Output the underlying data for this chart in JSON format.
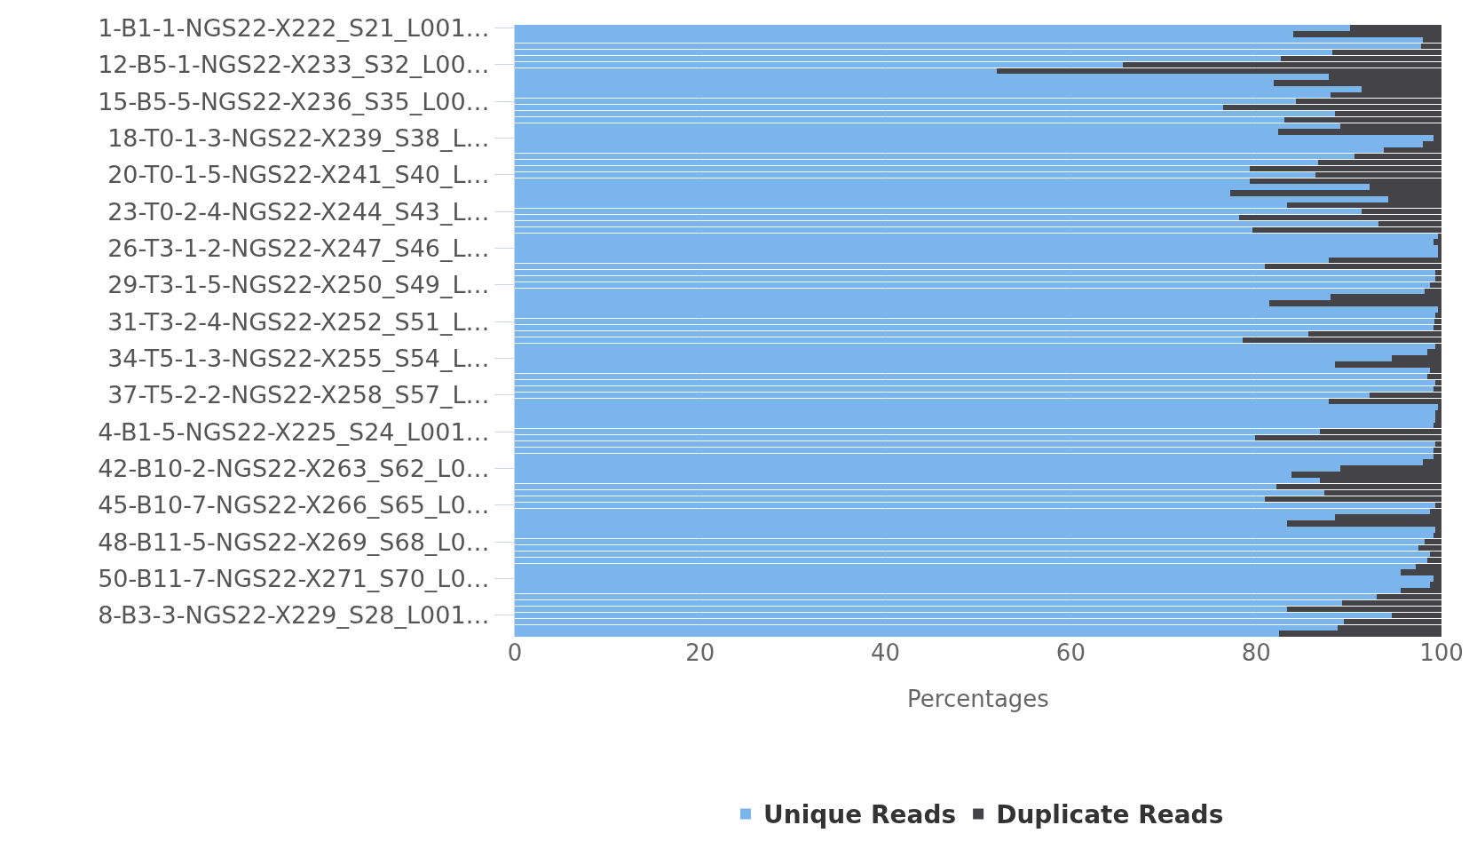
{
  "chart_data": {
    "type": "bar",
    "orientation": "horizontal",
    "stacked": true,
    "categories": [
      "1-B1-1-NGS22-X222_S21_L001…",
      null,
      null,
      null,
      null,
      null,
      "12-B5-1-NGS22-X233_S32_L00…",
      null,
      null,
      null,
      null,
      null,
      "15-B5-5-NGS22-X236_S35_L00…",
      null,
      null,
      null,
      null,
      null,
      "18-T0-1-3-NGS22-X239_S38_L…",
      null,
      null,
      null,
      null,
      null,
      "20-T0-1-5-NGS22-X241_S40_L…",
      null,
      null,
      null,
      null,
      null,
      "23-T0-2-4-NGS22-X244_S43_L…",
      null,
      null,
      null,
      null,
      null,
      "26-T3-1-2-NGS22-X247_S46_L…",
      null,
      null,
      null,
      null,
      null,
      "29-T3-1-5-NGS22-X250_S49_L…",
      null,
      null,
      null,
      null,
      null,
      "31-T3-2-4-NGS22-X252_S51_L…",
      null,
      null,
      null,
      null,
      null,
      "34-T5-1-3-NGS22-X255_S54_L…",
      null,
      null,
      null,
      null,
      null,
      "37-T5-2-2-NGS22-X258_S57_L…",
      null,
      null,
      null,
      null,
      null,
      "4-B1-5-NGS22-X225_S24_L001…",
      null,
      null,
      null,
      null,
      null,
      "42-B10-2-NGS22-X263_S62_L0…",
      null,
      null,
      null,
      null,
      null,
      "45-B10-7-NGS22-X266_S65_L0…",
      null,
      null,
      null,
      null,
      null,
      "48-B11-5-NGS22-X269_S68_L0…",
      null,
      null,
      null,
      null,
      null,
      "50-B11-7-NGS22-X271_S70_L0…",
      null,
      null,
      null,
      null,
      null,
      "8-B3-3-NGS22-X229_S28_L001…",
      null,
      null,
      null
    ],
    "series": [
      {
        "name": "Unique Reads",
        "color": "#7cb5ec",
        "values": [
          90.1,
          84.0,
          98.0,
          97.8,
          88.2,
          82.7,
          65.6,
          52.0,
          87.8,
          81.9,
          91.4,
          88.0,
          84.3,
          76.4,
          88.5,
          83.0,
          89.1,
          82.4,
          99.1,
          98.0,
          93.8,
          90.6,
          86.7,
          79.3,
          86.4,
          79.3,
          92.2,
          77.2,
          94.3,
          83.3,
          91.4,
          78.2,
          93.2,
          79.6,
          99.6,
          99.1,
          99.6,
          99.6,
          87.8,
          80.9,
          99.3,
          99.3,
          98.8,
          98.2,
          88.0,
          81.4,
          99.6,
          99.3,
          99.2,
          99.1,
          85.6,
          78.5,
          99.3,
          98.5,
          94.6,
          88.5,
          98.8,
          98.5,
          99.3,
          99.1,
          92.2,
          87.8,
          99.6,
          99.3,
          99.3,
          99.1,
          86.9,
          79.9,
          99.3,
          99.1,
          99.1,
          98.0,
          89.1,
          83.8,
          86.9,
          82.2,
          87.4,
          80.9,
          99.3,
          98.8,
          88.5,
          83.3,
          99.3,
          99.1,
          98.2,
          97.5,
          98.8,
          98.5,
          97.2,
          95.6,
          99.1,
          98.8,
          95.6,
          93.0,
          89.3,
          83.3,
          94.6,
          89.5,
          88.8,
          82.5
        ]
      },
      {
        "name": "Duplicate Reads",
        "color": "#434348",
        "values": [
          9.9,
          16.0,
          2.0,
          2.2,
          11.8,
          17.3,
          34.4,
          48.0,
          12.2,
          18.1,
          8.6,
          12.0,
          15.7,
          23.6,
          11.5,
          17.0,
          10.9,
          17.6,
          0.9,
          2.0,
          6.2,
          9.4,
          13.3,
          20.7,
          13.6,
          20.7,
          7.8,
          22.8,
          5.7,
          16.7,
          8.6,
          21.8,
          6.8,
          20.4,
          0.4,
          0.9,
          0.4,
          0.4,
          12.2,
          19.1,
          0.7,
          0.7,
          1.2,
          1.8,
          12.0,
          18.6,
          0.4,
          0.7,
          0.8,
          0.9,
          14.4,
          21.5,
          0.7,
          1.5,
          5.4,
          11.5,
          1.2,
          1.5,
          0.7,
          0.9,
          7.8,
          12.2,
          0.4,
          0.7,
          0.7,
          0.9,
          13.1,
          20.1,
          0.7,
          0.9,
          0.9,
          2.0,
          10.9,
          16.2,
          13.1,
          17.8,
          12.6,
          19.1,
          0.7,
          1.2,
          11.5,
          16.7,
          0.7,
          0.9,
          1.8,
          2.5,
          1.2,
          1.5,
          2.8,
          4.4,
          0.9,
          1.2,
          4.4,
          7.0,
          10.7,
          16.7,
          5.4,
          10.5,
          11.2,
          17.5
        ]
      }
    ],
    "xlim": [
      0,
      100
    ],
    "xticks": [
      0,
      20,
      40,
      60,
      80,
      100
    ],
    "xlabel": "Percentages",
    "grid": "x",
    "legend": "bottom"
  }
}
